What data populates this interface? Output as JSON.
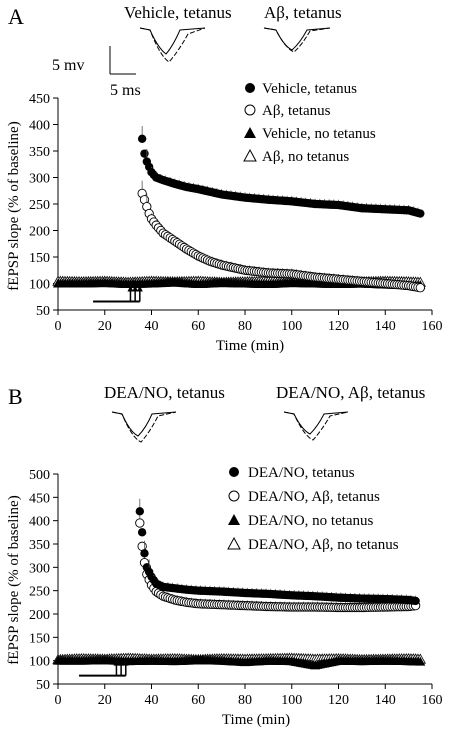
{
  "chart_data": [
    {
      "panel": "A",
      "type": "scatter",
      "trace_labels": [
        "Vehicle, tetanus",
        "Aβ, tetanus"
      ],
      "scale_bar": {
        "voltage": "5 mv",
        "time": "5 ms"
      },
      "xlabel": "Time (min)",
      "ylabel": "fEPSP slope (% of baseline)",
      "xlim": [
        0,
        160
      ],
      "ylim": [
        50,
        450
      ],
      "xticks": [
        "0",
        "20",
        "40",
        "60",
        "80",
        "100",
        "120",
        "140",
        "160"
      ],
      "yticks": [
        "50",
        "100",
        "150",
        "200",
        "250",
        "300",
        "350",
        "400",
        "450"
      ],
      "legend_position": "top-right",
      "tetanus_arrows_min": [
        31,
        33,
        35
      ],
      "baseline_bar_min": [
        15,
        35
      ],
      "series": [
        {
          "name": "Vehicle, tetanus",
          "marker": "filled-circle",
          "x": [
            36,
            37,
            38,
            39,
            40,
            42,
            45,
            50,
            55,
            60,
            70,
            80,
            90,
            100,
            110,
            120,
            130,
            140,
            150,
            155
          ],
          "y": [
            373,
            345,
            330,
            320,
            310,
            300,
            295,
            288,
            282,
            278,
            268,
            262,
            258,
            255,
            250,
            248,
            242,
            240,
            238,
            232
          ]
        },
        {
          "name": "Aβ, tetanus",
          "marker": "open-circle",
          "x": [
            36,
            37,
            38,
            39,
            40,
            42,
            45,
            50,
            55,
            60,
            65,
            70,
            80,
            90,
            100,
            110,
            120,
            130,
            140,
            150,
            155
          ],
          "y": [
            270,
            258,
            245,
            232,
            222,
            210,
            195,
            180,
            165,
            152,
            142,
            135,
            125,
            120,
            118,
            112,
            108,
            104,
            100,
            96,
            92
          ]
        },
        {
          "name": "Vehicle, no tetanus",
          "marker": "filled-triangle",
          "x": [
            0,
            10,
            20,
            30,
            40,
            50,
            60,
            70,
            80,
            90,
            100,
            110,
            120,
            130,
            140,
            150,
            155
          ],
          "y": [
            100,
            100,
            101,
            99,
            100,
            102,
            99,
            101,
            100,
            99,
            101,
            100,
            99,
            100,
            98,
            97,
            97
          ]
        },
        {
          "name": "Aβ, no tetanus",
          "marker": "open-triangle",
          "x": [
            0,
            10,
            20,
            30,
            40,
            50,
            60,
            70,
            80,
            90,
            100,
            110,
            120,
            130,
            140,
            150,
            155
          ],
          "y": [
            104,
            103,
            104,
            102,
            104,
            103,
            104,
            102,
            103,
            104,
            103,
            104,
            102,
            103,
            104,
            103,
            102
          ]
        }
      ]
    },
    {
      "panel": "B",
      "type": "scatter",
      "trace_labels": [
        "DEA/NO, tetanus",
        "DEA/NO, Aβ, tetanus"
      ],
      "xlabel": "Time (min)",
      "ylabel": "fEPSP slope (% of baseline)",
      "xlim": [
        0,
        160
      ],
      "ylim": [
        50,
        500
      ],
      "xticks": [
        "0",
        "20",
        "40",
        "60",
        "80",
        "100",
        "120",
        "140",
        "160"
      ],
      "yticks": [
        "50",
        "100",
        "150",
        "200",
        "250",
        "300",
        "350",
        "400",
        "450",
        "500"
      ],
      "legend_position": "top-right",
      "tetanus_arrows_min": [
        25,
        27,
        29
      ],
      "baseline_bar_min": [
        9,
        29
      ],
      "series": [
        {
          "name": "DEA/NO, tetanus",
          "marker": "filled-circle",
          "x": [
            35,
            36,
            37,
            38,
            40,
            42,
            45,
            50,
            55,
            60,
            70,
            80,
            90,
            100,
            110,
            120,
            130,
            140,
            150,
            153
          ],
          "y": [
            420,
            375,
            330,
            300,
            280,
            265,
            258,
            255,
            252,
            250,
            248,
            245,
            243,
            240,
            238,
            235,
            233,
            232,
            230,
            228
          ]
        },
        {
          "name": "DEA/NO, Aβ, tetanus",
          "marker": "open-circle",
          "x": [
            35,
            36,
            37,
            38,
            40,
            42,
            45,
            50,
            55,
            60,
            70,
            80,
            90,
            100,
            110,
            120,
            130,
            140,
            150,
            153
          ],
          "y": [
            395,
            345,
            310,
            285,
            262,
            248,
            238,
            230,
            225,
            222,
            220,
            218,
            216,
            215,
            215,
            214,
            214,
            215,
            216,
            218
          ]
        },
        {
          "name": "DEA/NO, no tetanus",
          "marker": "filled-triangle",
          "x": [
            0,
            10,
            20,
            30,
            40,
            50,
            60,
            70,
            80,
            90,
            100,
            110,
            120,
            130,
            140,
            150,
            155
          ],
          "y": [
            100,
            100,
            101,
            99,
            100,
            99,
            101,
            100,
            97,
            100,
            99,
            90,
            100,
            99,
            100,
            99,
            98
          ]
        },
        {
          "name": "DEA/NO, Aβ, no tetanus",
          "marker": "open-triangle",
          "x": [
            0,
            10,
            20,
            30,
            40,
            50,
            60,
            70,
            80,
            90,
            100,
            110,
            120,
            130,
            140,
            150,
            155
          ],
          "y": [
            102,
            104,
            103,
            105,
            103,
            104,
            102,
            104,
            103,
            104,
            105,
            103,
            104,
            102,
            103,
            104,
            103
          ]
        }
      ]
    }
  ]
}
